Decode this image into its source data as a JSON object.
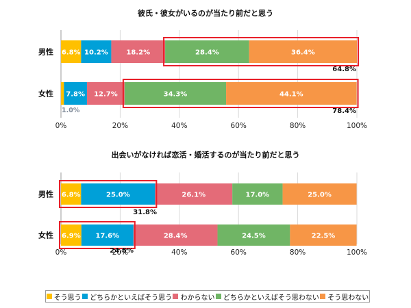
{
  "chart_data": [
    {
      "type": "bar",
      "orientation": "horizontal",
      "stacked": true,
      "title": "彼氏・彼女がいるのが当たり前だと思う",
      "categories": [
        "男性",
        "女性"
      ],
      "series": [
        {
          "name": "そう思う",
          "values": [
            6.8,
            1.0
          ],
          "color": "#ffc000"
        },
        {
          "name": "どちらかといえばそう思う",
          "values": [
            10.2,
            7.8
          ],
          "color": "#00a0d8"
        },
        {
          "name": "わからない",
          "values": [
            18.2,
            12.7
          ],
          "color": "#e46b78"
        },
        {
          "name": "どちらかといえばそう思わない",
          "values": [
            28.4,
            34.3
          ],
          "color": "#70b565"
        },
        {
          "name": "そう思わない",
          "values": [
            36.4,
            44.1
          ],
          "color": "#f79646"
        }
      ],
      "data_labels": [
        [
          "6.8%",
          "10.2%",
          "18.2%",
          "28.4%",
          "36.4%"
        ],
        [
          "1.0%",
          "7.8%",
          "12.7%",
          "34.3%",
          "44.1%"
        ]
      ],
      "highlight": {
        "series": [
          3,
          4
        ],
        "totals": [
          "64.8%",
          "78.4%"
        ]
      },
      "xticks": [
        "0%",
        "20%",
        "40%",
        "60%",
        "80%",
        "100%"
      ],
      "xlim": [
        0,
        100
      ]
    },
    {
      "type": "bar",
      "orientation": "horizontal",
      "stacked": true,
      "title": "出会いがなければ恋活・婚活するのが当たり前だと思う",
      "categories": [
        "男性",
        "女性"
      ],
      "series": [
        {
          "name": "そう思う",
          "values": [
            6.8,
            6.9
          ],
          "color": "#ffc000"
        },
        {
          "name": "どちらかといえばそう思う",
          "values": [
            25.0,
            17.6
          ],
          "color": "#00a0d8"
        },
        {
          "name": "わからない",
          "values": [
            26.1,
            28.4
          ],
          "color": "#e46b78"
        },
        {
          "name": "どちらかといえばそう思わない",
          "values": [
            17.0,
            24.5
          ],
          "color": "#70b565"
        },
        {
          "name": "そう思わない",
          "values": [
            25.0,
            22.5
          ],
          "color": "#f79646"
        }
      ],
      "data_labels": [
        [
          "6.8%",
          "25.0%",
          "26.1%",
          "17.0%",
          "25.0%"
        ],
        [
          "6.9%",
          "17.6%",
          "28.4%",
          "24.5%",
          "22.5%"
        ]
      ],
      "highlight": {
        "series": [
          0,
          1
        ],
        "totals": [
          "31.8%",
          "24.5%"
        ]
      },
      "xticks": [
        "0%",
        "20%",
        "40%",
        "60%",
        "80%",
        "100%"
      ],
      "xlim": [
        0,
        100
      ]
    }
  ],
  "legend": {
    "position": "bottom",
    "items": [
      {
        "label": "そう思う",
        "color": "#ffc000"
      },
      {
        "label": "どちらかといえばそう思う",
        "color": "#00a0d8"
      },
      {
        "label": "わからない",
        "color": "#e46b78"
      },
      {
        "label": "どちらかといえばそう思わない",
        "color": "#70b565"
      },
      {
        "label": "そう思わない",
        "color": "#f79646"
      }
    ]
  }
}
